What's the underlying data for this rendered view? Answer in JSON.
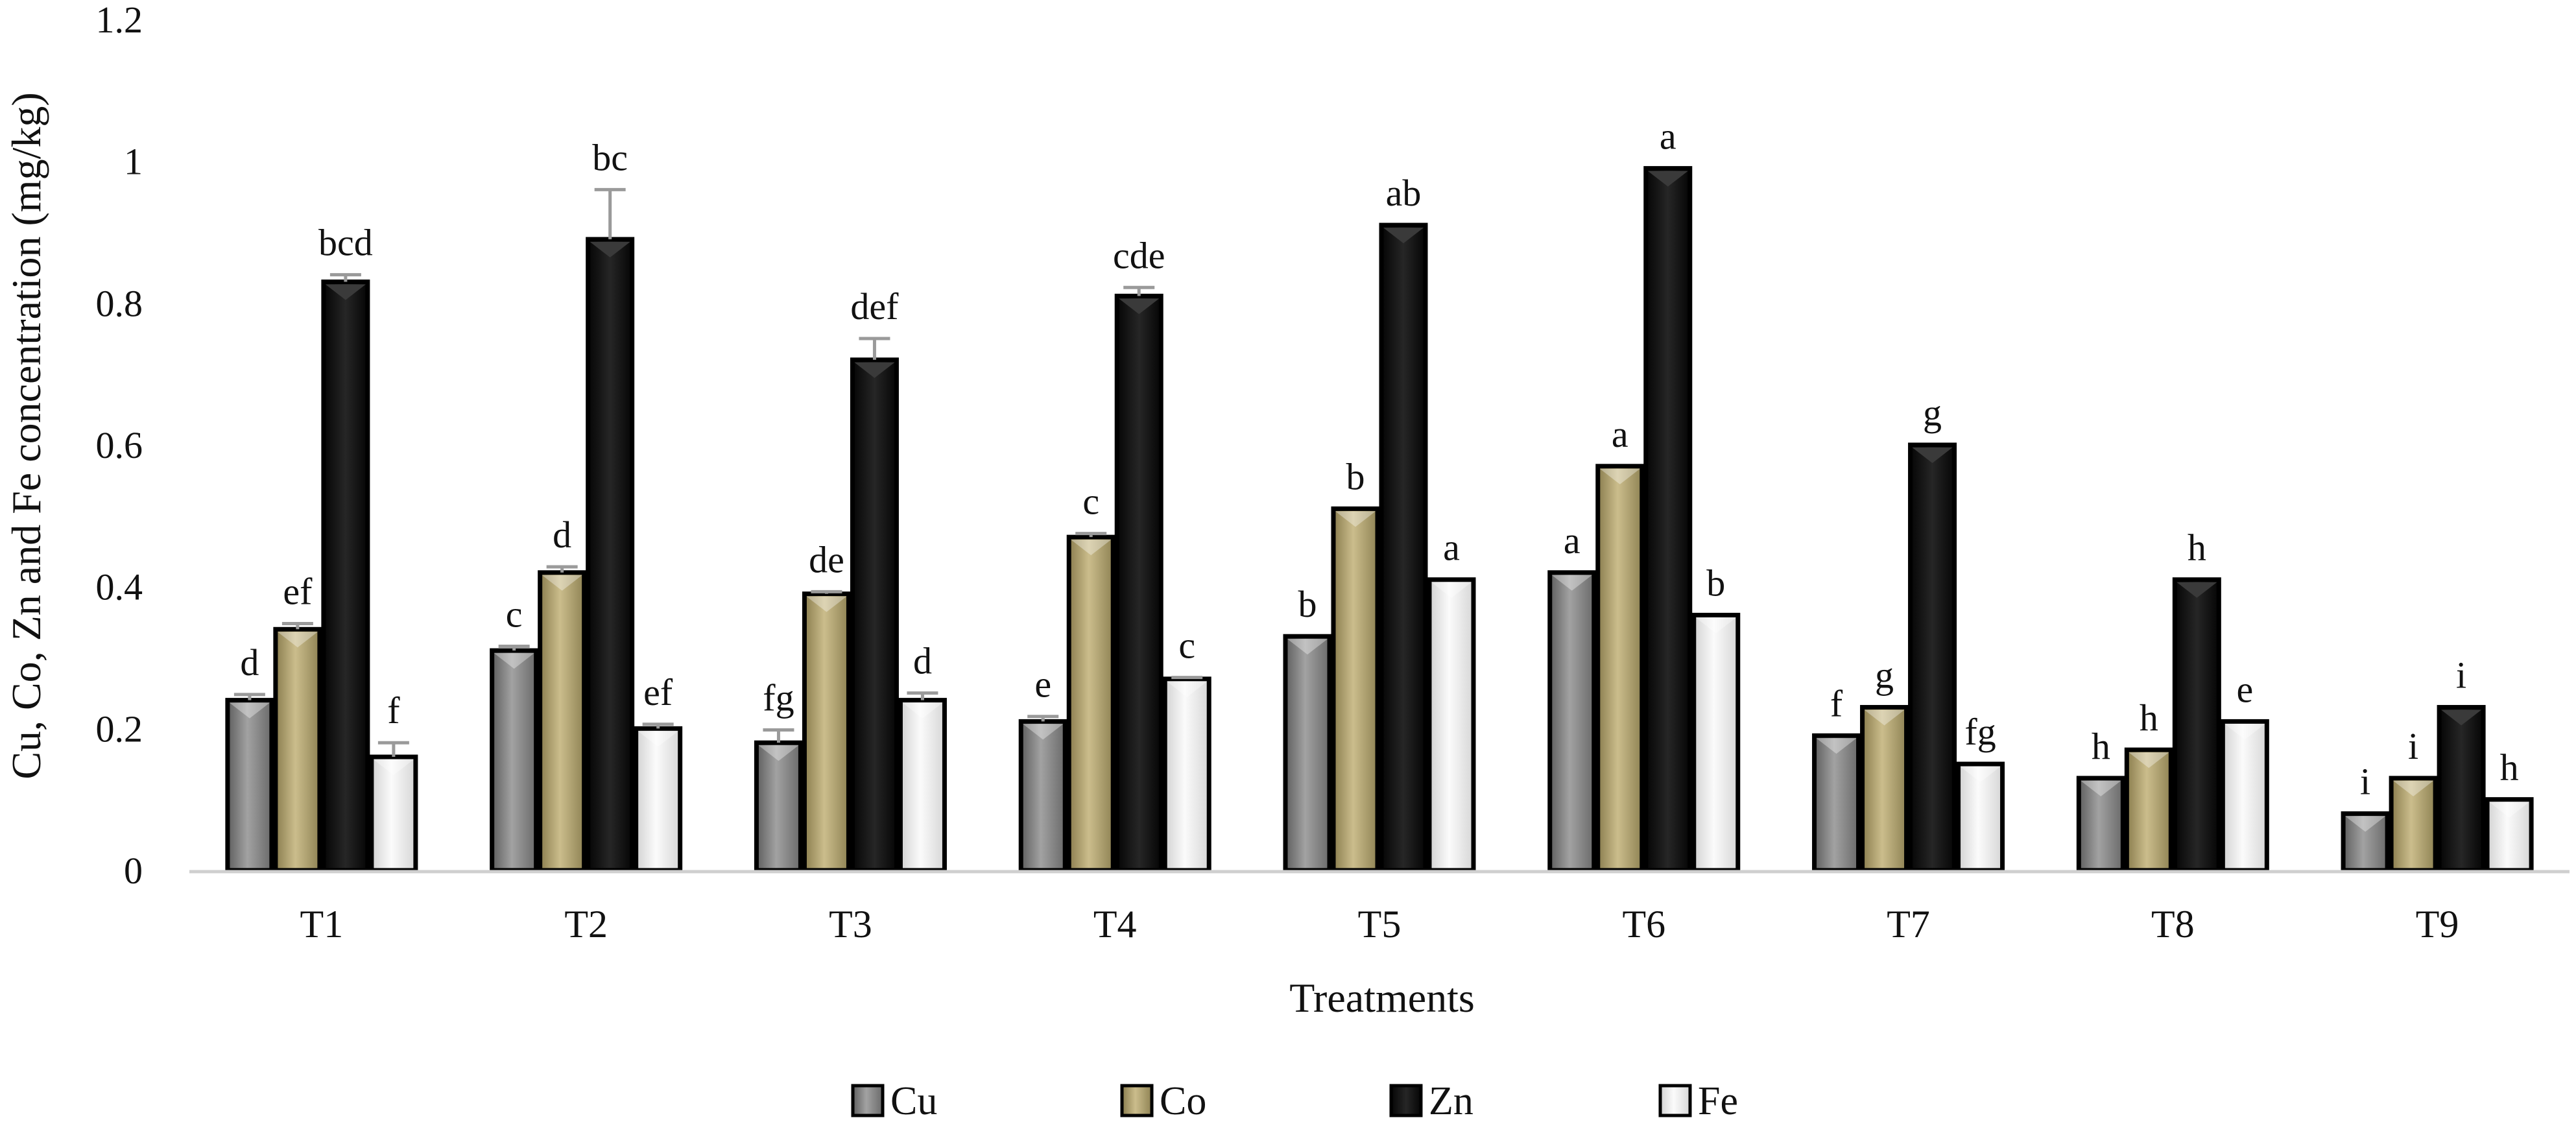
{
  "chart_data": {
    "type": "bar",
    "title": "",
    "xlabel": "Treatments",
    "ylabel": "Cu, Co, Zn and Fe concentration (mg/kg)",
    "ylim": [
      0,
      1.2
    ],
    "yticks": [
      0,
      0.2,
      0.4,
      0.6,
      0.8,
      1,
      1.2
    ],
    "ytick_labels": [
      "0",
      "0.2",
      "0.4",
      "0.6",
      "0.8",
      "1",
      "1.2"
    ],
    "categories": [
      "T1",
      "T2",
      "T3",
      "T4",
      "T5",
      "T6",
      "T7",
      "T8",
      "T9"
    ],
    "legend_position": "bottom",
    "series": [
      {
        "name": "Cu",
        "color": "#8a8a8a",
        "values": [
          0.24,
          0.31,
          0.18,
          0.21,
          0.33,
          0.42,
          0.19,
          0.13,
          0.08
        ],
        "errors": [
          0.008,
          0.006,
          0.018,
          0.007,
          0,
          0,
          0,
          0,
          0
        ],
        "letters": [
          "d",
          "c",
          "fg",
          "e",
          "b",
          "a",
          "f",
          "h",
          "i"
        ]
      },
      {
        "name": "Co",
        "color": "#b3a576",
        "values": [
          0.34,
          0.42,
          0.39,
          0.47,
          0.51,
          0.57,
          0.23,
          0.17,
          0.13
        ],
        "errors": [
          0.008,
          0.008,
          0.003,
          0.005,
          0,
          0,
          0,
          0,
          0
        ],
        "letters": [
          "ef",
          "d",
          "de",
          "c",
          "b",
          "a",
          "g",
          "h",
          "i"
        ]
      },
      {
        "name": "Zn",
        "color": "#151515",
        "values": [
          0.83,
          0.89,
          0.72,
          0.81,
          0.91,
          0.99,
          0.6,
          0.41,
          0.23
        ],
        "errors": [
          0.01,
          0.07,
          0.03,
          0.012,
          0,
          0,
          0,
          0,
          0
        ],
        "letters": [
          "bcd",
          "bc",
          "def",
          "cde",
          "ab",
          "a",
          "g",
          "h",
          "i"
        ]
      },
      {
        "name": "Fe",
        "color": "#ececec",
        "values": [
          0.16,
          0.2,
          0.24,
          0.27,
          0.41,
          0.36,
          0.15,
          0.21,
          0.1
        ],
        "errors": [
          0.02,
          0.006,
          0.01,
          0.002,
          0,
          0,
          0,
          0,
          0
        ],
        "letters": [
          "f",
          "ef",
          "d",
          "c",
          "a",
          "b",
          "fg",
          "e",
          "h"
        ]
      }
    ]
  }
}
